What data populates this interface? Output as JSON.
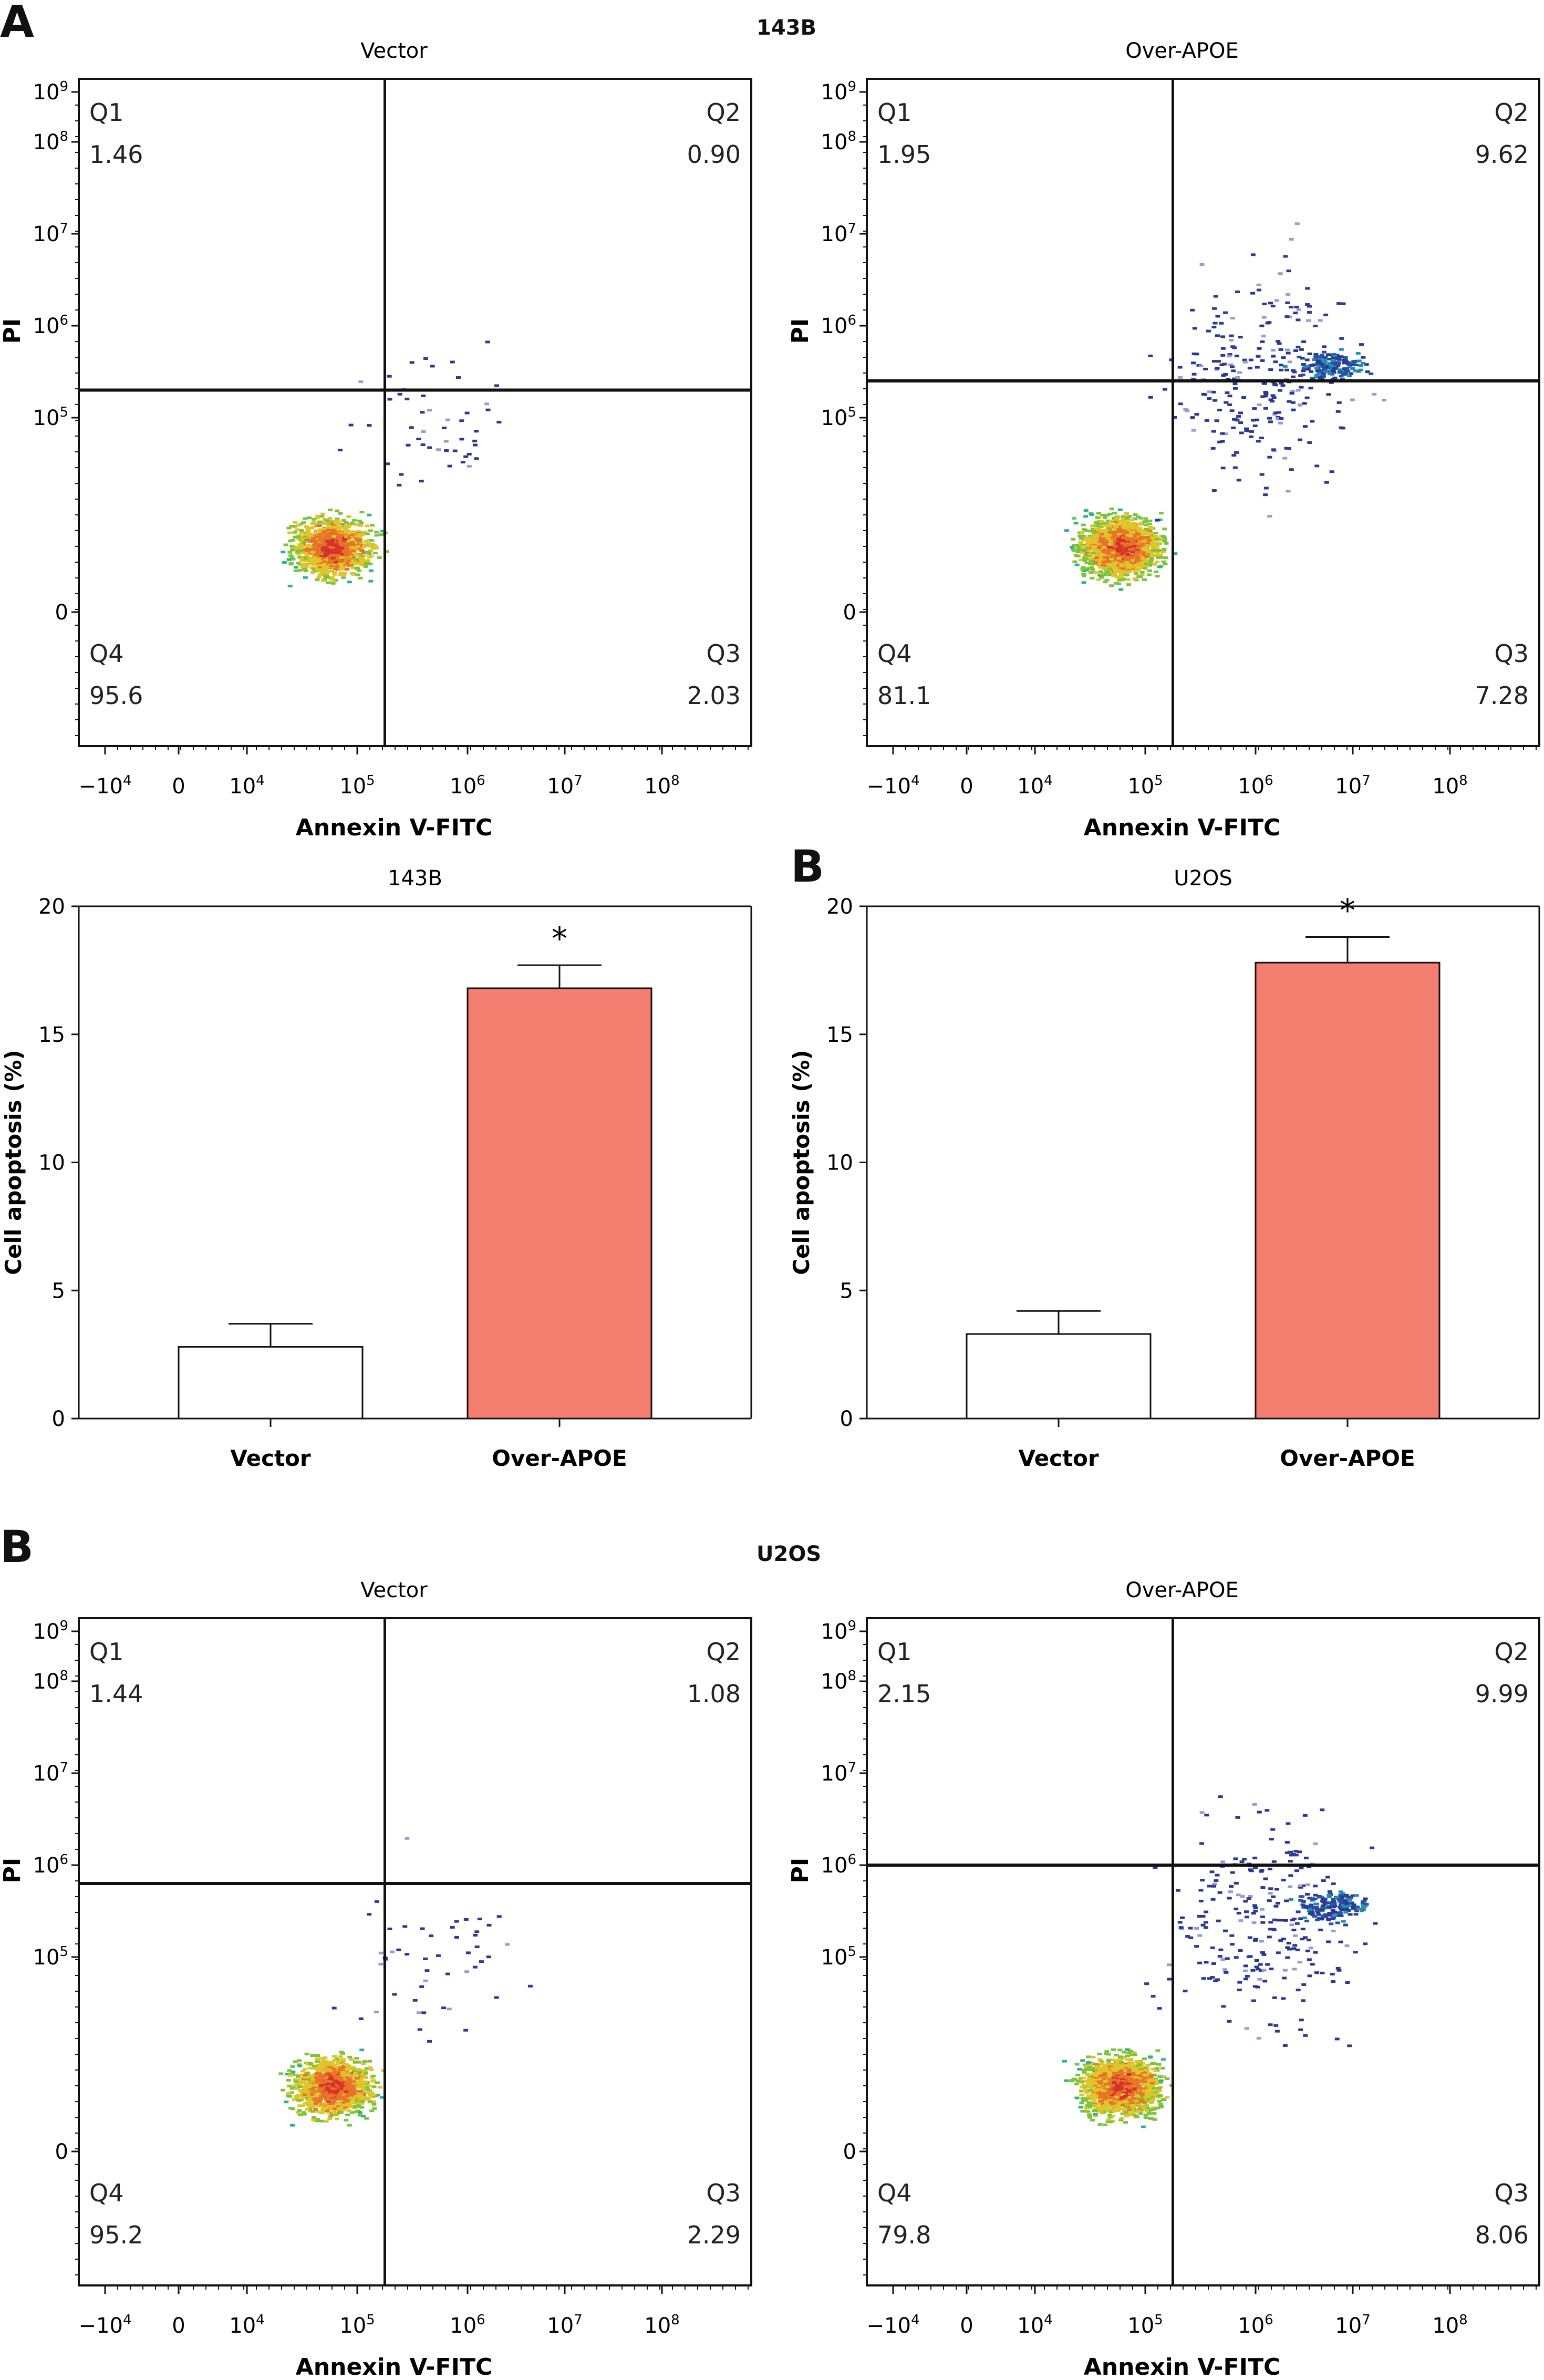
{
  "panels": {
    "A_letter": "A",
    "B_letter": "B",
    "B2_letter": "B",
    "cell_143B": "143B",
    "cell_U2OS": "U2OS"
  },
  "chart_data": [
    {
      "type": "scatter",
      "id": "flow-143b-vector",
      "title": "Vector",
      "xlabel": "Annexin V-FITC",
      "ylabel": "PI",
      "x_ticks": [
        "-10^4",
        "0",
        "10^4",
        "10^5",
        "10^6",
        "10^7",
        "10^8"
      ],
      "y_ticks": [
        "0",
        "10^5",
        "10^6",
        "10^7",
        "10^8",
        "10^9"
      ],
      "quadrants": {
        "Q1": "1.46",
        "Q2": "0.90",
        "Q3": "2.03",
        "Q4": "95.6"
      },
      "gate": {
        "x_decade": 5.25,
        "y_decade": 5.15
      }
    },
    {
      "type": "scatter",
      "id": "flow-143b-over-apoe",
      "title": "Over-APOE",
      "xlabel": "Annexin V-FITC",
      "ylabel": "PI",
      "x_ticks": [
        "-10^4",
        "0",
        "10^4",
        "10^5",
        "10^6",
        "10^7",
        "10^8"
      ],
      "y_ticks": [
        "0",
        "10^5",
        "10^6",
        "10^7",
        "10^8",
        "10^9"
      ],
      "quadrants": {
        "Q1": "1.95",
        "Q2": "9.62",
        "Q3": "7.28",
        "Q4": "81.1"
      },
      "gate": {
        "x_decade": 5.25,
        "y_decade": 5.2
      }
    },
    {
      "type": "bar",
      "id": "bar-143b",
      "title": "143B",
      "categories": [
        "Vector",
        "Over-APOE"
      ],
      "values": [
        2.8,
        16.8
      ],
      "errors": [
        0.9,
        0.9
      ],
      "significance": [
        "",
        "*"
      ],
      "colors": [
        "#ffffff",
        "#f47f70"
      ],
      "xlabel": "",
      "ylabel": "Cell apoptosis (%)",
      "ylim": [
        0,
        20
      ],
      "y_ticks": [
        0,
        5,
        10,
        15,
        20
      ]
    },
    {
      "type": "bar",
      "id": "bar-u2os",
      "title": "U2OS",
      "categories": [
        "Vector",
        "Over-APOE"
      ],
      "values": [
        3.3,
        17.8
      ],
      "errors": [
        0.9,
        1.0
      ],
      "significance": [
        "",
        "*"
      ],
      "colors": [
        "#ffffff",
        "#f47f70"
      ],
      "xlabel": "",
      "ylabel": "Cell apoptosis (%)",
      "ylim": [
        0,
        20
      ],
      "y_ticks": [
        0,
        5,
        10,
        15,
        20
      ]
    },
    {
      "type": "scatter",
      "id": "flow-u2os-vector",
      "title": "Vector",
      "xlabel": "Annexin V-FITC",
      "ylabel": "PI",
      "x_ticks": [
        "-10^4",
        "0",
        "10^4",
        "10^5",
        "10^6",
        "10^7",
        "10^8"
      ],
      "y_ticks": [
        "0",
        "10^5",
        "10^6",
        "10^7",
        "10^8",
        "10^9"
      ],
      "quadrants": {
        "Q1": "1.44",
        "Q2": "1.08",
        "Q3": "2.29",
        "Q4": "95.2"
      },
      "gate": {
        "x_decade": 5.25,
        "y_decade": 5.4
      }
    },
    {
      "type": "scatter",
      "id": "flow-u2os-over-apoe",
      "title": "Over-APOE",
      "xlabel": "Annexin V-FITC",
      "ylabel": "PI",
      "x_ticks": [
        "-10^4",
        "0",
        "10^4",
        "10^5",
        "10^6",
        "10^7",
        "10^8"
      ],
      "y_ticks": [
        "0",
        "10^5",
        "10^6",
        "10^7",
        "10^8",
        "10^9"
      ],
      "quadrants": {
        "Q1": "2.15",
        "Q2": "9.99",
        "Q3": "8.06",
        "Q4": "79.8"
      },
      "gate": {
        "x_decade": 5.25,
        "y_decade": 5.5
      }
    }
  ]
}
